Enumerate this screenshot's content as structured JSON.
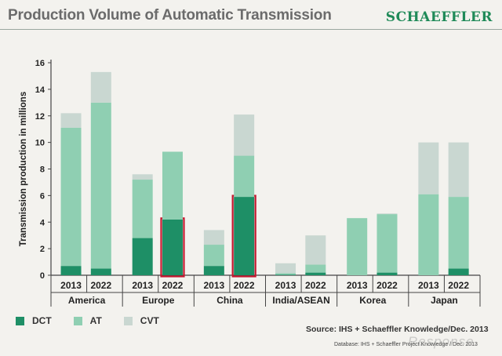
{
  "slide": {
    "title": "Production Volume of Automatic Transmission",
    "brand": "SCHAEFFLER",
    "source": "Source: IHS + Schaeffler Knowledge/Dec. 2013",
    "database": "Database: IHS + Schaeffler Project Knowledge / Dec. 2013",
    "watermark": "Response."
  },
  "colors": {
    "dct": "#1e8f66",
    "at": "#8fcfb2",
    "cvt": "#c9d7d1",
    "highlight": "#c4182f",
    "axis": "#444444"
  },
  "chart_data": {
    "type": "bar",
    "stacked": true,
    "title": "Production Volume of Automatic Transmission",
    "xlabel": "",
    "ylabel": "Transmission production in millions",
    "ylim": [
      0,
      16
    ],
    "yticks": [
      "0",
      "2",
      "4",
      "6",
      "8",
      "10",
      "12",
      "14",
      "16"
    ],
    "regions": [
      "America",
      "Europe",
      "China",
      "India/ASEAN",
      "Korea",
      "Japan"
    ],
    "categories": [
      "2013",
      "2022",
      "2013",
      "2022",
      "2013",
      "2022",
      "2013",
      "2022",
      "2013",
      "2022",
      "2013",
      "2022"
    ],
    "series": [
      {
        "name": "DCT",
        "values": [
          0.7,
          0.5,
          2.8,
          4.2,
          0.7,
          5.9,
          0.05,
          0.2,
          0.0,
          0.2,
          0.0,
          0.5
        ]
      },
      {
        "name": "AT",
        "values": [
          10.4,
          12.5,
          4.4,
          5.1,
          1.6,
          3.1,
          0.1,
          0.6,
          4.3,
          4.4,
          6.1,
          5.4
        ]
      },
      {
        "name": "CVT",
        "values": [
          1.1,
          2.3,
          0.4,
          0.0,
          1.1,
          3.1,
          0.75,
          2.2,
          0.0,
          0.05,
          3.9,
          4.1
        ]
      }
    ],
    "highlighted": [
      {
        "category_index": 3,
        "series": "DCT"
      },
      {
        "category_index": 5,
        "series": "DCT"
      }
    ],
    "legend_position": "bottom-left",
    "grid": false
  }
}
